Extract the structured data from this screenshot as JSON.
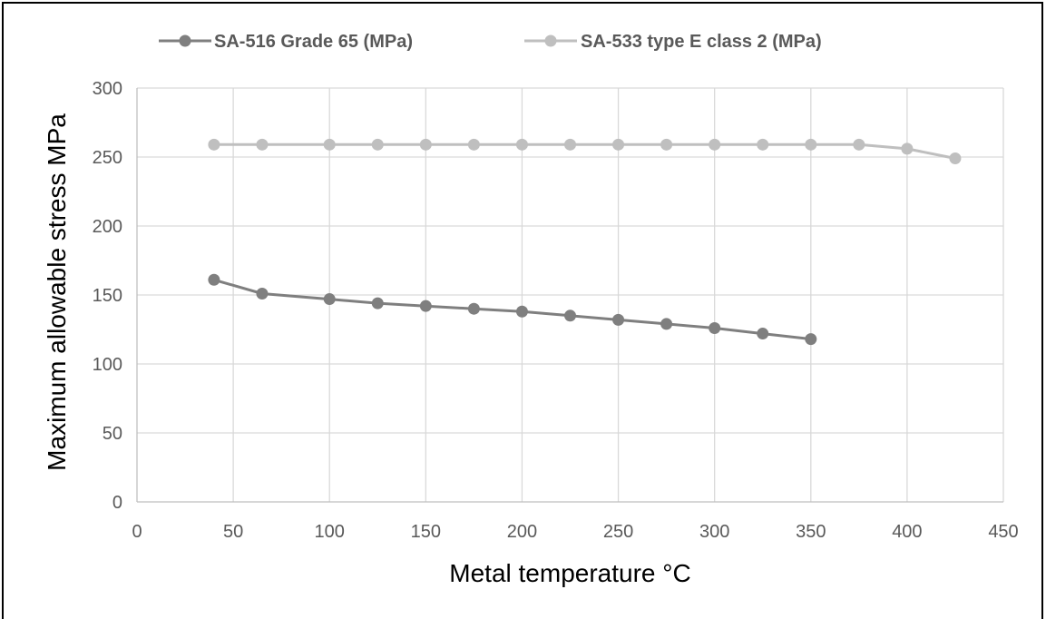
{
  "chart_data": {
    "type": "line",
    "xlabel": "Metal temperature °C",
    "ylabel": "Maximum allowable stress MPa",
    "xlim": [
      0,
      450
    ],
    "ylim": [
      0,
      300
    ],
    "x_ticks": [
      0,
      50,
      100,
      150,
      200,
      250,
      300,
      350,
      400,
      450
    ],
    "y_ticks": [
      0,
      50,
      100,
      150,
      200,
      250,
      300
    ],
    "grid": true,
    "legend_position": "top",
    "series": [
      {
        "name": "SA-516 Grade 65 (MPa)",
        "color": "#7f7f7f",
        "x": [
          40,
          65,
          100,
          125,
          150,
          175,
          200,
          225,
          250,
          275,
          300,
          325,
          350
        ],
        "y": [
          161,
          151,
          147,
          144,
          142,
          140,
          138,
          135,
          132,
          129,
          126,
          122,
          118
        ]
      },
      {
        "name": "SA-533 type E class 2 (MPa)",
        "color": "#bfbfbf",
        "x": [
          40,
          65,
          100,
          125,
          150,
          175,
          200,
          225,
          250,
          275,
          300,
          325,
          350,
          375,
          400,
          425
        ],
        "y": [
          259,
          259,
          259,
          259,
          259,
          259,
          259,
          259,
          259,
          259,
          259,
          259,
          259,
          259,
          256,
          249
        ]
      }
    ]
  }
}
